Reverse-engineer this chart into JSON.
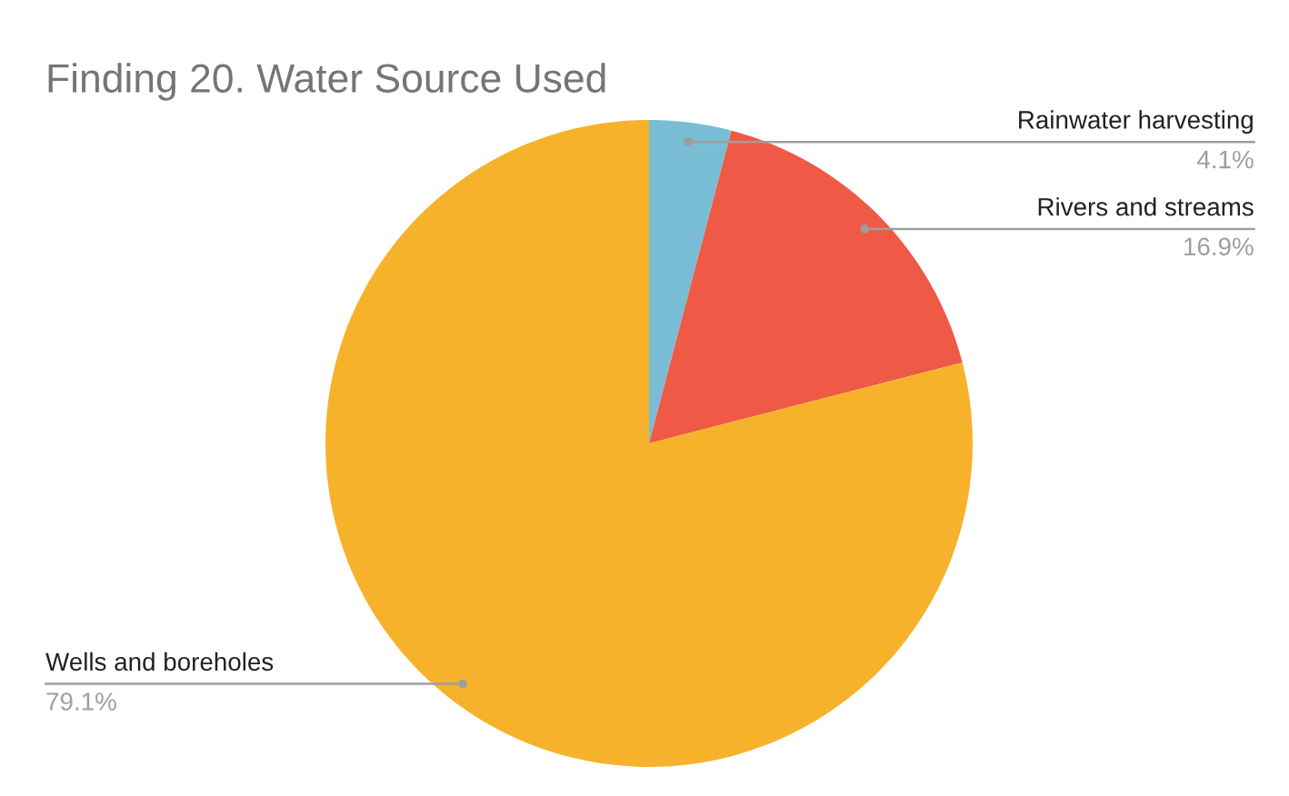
{
  "chart_data": {
    "type": "pie",
    "title": "Finding 20. Water Source Used",
    "categories": [
      "Rainwater harvesting",
      "Rivers and streams",
      "Wells and boreholes"
    ],
    "values": [
      4.1,
      16.9,
      79.1
    ],
    "value_labels": [
      "4.1%",
      "16.9%",
      "79.1%"
    ],
    "colors": [
      "#78bdd4",
      "#ee5a45",
      "#f7b22b"
    ]
  }
}
